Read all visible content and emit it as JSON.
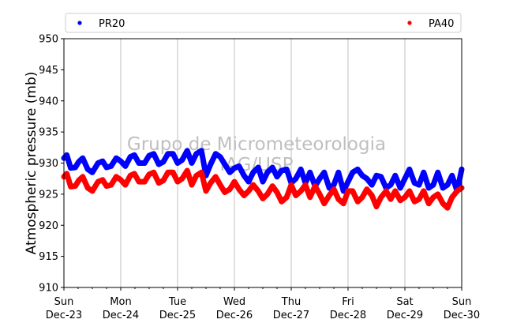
{
  "chart_data": {
    "type": "scatter",
    "title": "",
    "xlabel": "",
    "ylabel": "Atmospheric pressure (mb)",
    "ylim": [
      910,
      950
    ],
    "yticks": [
      910,
      915,
      920,
      925,
      930,
      935,
      940,
      945,
      950
    ],
    "xlim": [
      "2018-12-23",
      "2018-12-30"
    ],
    "xticks": [
      {
        "day": "Sun",
        "date": "Dec-23"
      },
      {
        "day": "Mon",
        "date": "Dec-24"
      },
      {
        "day": "Tue",
        "date": "Dec-25"
      },
      {
        "day": "Wed",
        "date": "Dec-26"
      },
      {
        "day": "Thu",
        "date": "Dec-27"
      },
      {
        "day": "Fri",
        "date": "Dec-28"
      },
      {
        "day": "Sat",
        "date": "Dec-29"
      },
      {
        "day": "Sun",
        "date": "Dec-30"
      }
    ],
    "grid": "vertical",
    "legend": "top",
    "watermark": [
      "Grupo de Micrometeorologia",
      "IAG/USP"
    ],
    "series": [
      {
        "name": "PR20",
        "color": "#0000ff",
        "x": [
          0.0,
          0.05,
          0.12,
          0.2,
          0.26,
          0.33,
          0.42,
          0.5,
          0.6,
          0.68,
          0.75,
          0.83,
          0.92,
          1.0,
          1.08,
          1.17,
          1.24,
          1.32,
          1.42,
          1.5,
          1.58,
          1.67,
          1.75,
          1.83,
          1.92,
          2.0,
          2.08,
          2.17,
          2.25,
          2.33,
          2.42,
          2.5,
          2.58,
          2.67,
          2.75,
          2.83,
          2.92,
          3.0,
          3.08,
          3.17,
          3.25,
          3.33,
          3.42,
          3.5,
          3.58,
          3.67,
          3.75,
          3.83,
          3.92,
          4.0,
          4.08,
          4.17,
          4.25,
          4.33,
          4.42,
          4.5,
          4.58,
          4.67,
          4.75,
          4.83,
          4.92,
          5.0,
          5.08,
          5.17,
          5.25,
          5.33,
          5.42,
          5.5,
          5.58,
          5.67,
          5.75,
          5.83,
          5.92,
          6.0,
          6.08,
          6.17,
          6.25,
          6.33,
          6.42,
          6.5,
          6.58,
          6.67,
          6.75,
          6.83,
          6.92,
          7.0
        ],
        "y": [
          930.8,
          931.3,
          929.2,
          929.3,
          930.2,
          930.8,
          929.0,
          928.5,
          930.0,
          930.3,
          929.3,
          929.5,
          930.8,
          930.3,
          929.5,
          931.0,
          931.3,
          930.0,
          930.0,
          931.2,
          931.5,
          929.8,
          930.2,
          931.5,
          931.5,
          930.0,
          930.5,
          932.0,
          930.0,
          931.5,
          932.0,
          928.0,
          929.8,
          931.5,
          931.0,
          929.8,
          928.5,
          929.2,
          929.5,
          928.0,
          927.0,
          928.5,
          929.3,
          927.0,
          928.5,
          929.3,
          927.8,
          928.8,
          929.0,
          926.8,
          927.5,
          929.0,
          926.8,
          928.5,
          926.3,
          927.5,
          928.5,
          926.0,
          926.5,
          928.5,
          925.5,
          927.0,
          928.5,
          929.0,
          928.0,
          927.5,
          926.5,
          928.0,
          927.8,
          926.0,
          926.5,
          928.0,
          926.0,
          927.5,
          929.0,
          926.8,
          926.5,
          928.5,
          926.0,
          926.5,
          928.5,
          926.0,
          926.5,
          928.0,
          925.5,
          929.0
        ]
      },
      {
        "name": "PA40",
        "color": "#ff0000",
        "x": [
          0.0,
          0.05,
          0.12,
          0.2,
          0.26,
          0.33,
          0.42,
          0.5,
          0.6,
          0.68,
          0.75,
          0.83,
          0.92,
          1.0,
          1.08,
          1.17,
          1.24,
          1.32,
          1.42,
          1.5,
          1.58,
          1.67,
          1.75,
          1.83,
          1.92,
          2.0,
          2.08,
          2.17,
          2.25,
          2.33,
          2.42,
          2.5,
          2.58,
          2.67,
          2.75,
          2.83,
          2.92,
          3.0,
          3.08,
          3.17,
          3.25,
          3.33,
          3.42,
          3.5,
          3.58,
          3.67,
          3.75,
          3.83,
          3.92,
          4.0,
          4.08,
          4.17,
          4.25,
          4.33,
          4.42,
          4.5,
          4.58,
          4.67,
          4.75,
          4.83,
          4.92,
          5.0,
          5.08,
          5.17,
          5.25,
          5.33,
          5.42,
          5.5,
          5.58,
          5.67,
          5.75,
          5.83,
          5.92,
          6.0,
          6.08,
          6.17,
          6.25,
          6.33,
          6.42,
          6.5,
          6.58,
          6.67,
          6.75,
          6.83,
          6.92,
          7.0
        ],
        "y": [
          927.8,
          928.3,
          926.2,
          926.3,
          927.2,
          927.8,
          926.0,
          925.5,
          927.0,
          927.3,
          926.3,
          926.5,
          927.8,
          927.3,
          926.5,
          928.0,
          928.3,
          927.0,
          927.0,
          928.2,
          928.5,
          926.8,
          927.2,
          928.5,
          928.5,
          927.0,
          927.5,
          928.8,
          926.5,
          928.0,
          928.5,
          925.5,
          926.8,
          927.8,
          926.5,
          925.3,
          925.8,
          927.0,
          925.8,
          924.8,
          925.5,
          926.5,
          925.5,
          924.3,
          925.0,
          926.3,
          925.3,
          923.8,
          924.5,
          926.5,
          924.8,
          925.5,
          926.5,
          924.5,
          926.3,
          925.0,
          923.5,
          924.8,
          925.8,
          924.2,
          923.5,
          925.5,
          925.5,
          923.8,
          924.5,
          925.8,
          924.8,
          923.0,
          924.5,
          925.5,
          924.2,
          925.5,
          924.0,
          924.5,
          925.5,
          923.8,
          924.2,
          925.5,
          923.5,
          924.5,
          925.0,
          923.5,
          922.8,
          924.5,
          925.5,
          926.0
        ]
      }
    ]
  }
}
